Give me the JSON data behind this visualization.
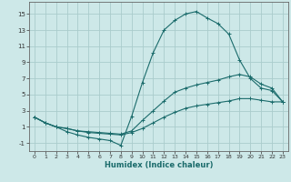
{
  "xlabel": "Humidex (Indice chaleur)",
  "bg_color": "#cde8e8",
  "grid_color": "#aacccc",
  "line_color": "#1a6b6b",
  "xlim": [
    -0.5,
    23.5
  ],
  "ylim": [
    -2.0,
    16.5
  ],
  "xticks": [
    0,
    1,
    2,
    3,
    4,
    5,
    6,
    7,
    8,
    9,
    10,
    11,
    12,
    13,
    14,
    15,
    16,
    17,
    18,
    19,
    20,
    21,
    22,
    23
  ],
  "yticks": [
    -1,
    1,
    3,
    5,
    7,
    9,
    11,
    13,
    15
  ],
  "curve1_x": [
    0,
    1,
    2,
    3,
    4,
    5,
    6,
    7,
    8,
    9,
    10,
    11,
    12,
    13,
    14,
    15,
    16,
    17,
    18,
    19,
    20,
    21,
    22,
    23
  ],
  "curve1_y": [
    2.2,
    1.5,
    1.0,
    0.4,
    0.0,
    -0.3,
    -0.5,
    -0.7,
    -1.3,
    2.3,
    6.5,
    10.2,
    13.0,
    14.2,
    15.0,
    15.3,
    14.5,
    13.8,
    12.5,
    9.3,
    7.0,
    5.8,
    5.5,
    4.1
  ],
  "curve2_x": [
    0,
    1,
    2,
    3,
    4,
    5,
    6,
    7,
    8,
    9,
    10,
    11,
    12,
    13,
    14,
    15,
    16,
    17,
    18,
    19,
    20,
    21,
    22,
    23
  ],
  "curve2_y": [
    2.2,
    1.5,
    1.0,
    0.8,
    0.5,
    0.4,
    0.3,
    0.2,
    0.1,
    0.5,
    1.8,
    3.0,
    4.2,
    5.3,
    5.8,
    6.2,
    6.5,
    6.8,
    7.2,
    7.5,
    7.2,
    6.3,
    5.8,
    4.1
  ],
  "curve3_x": [
    0,
    1,
    2,
    3,
    4,
    5,
    6,
    7,
    8,
    9,
    10,
    11,
    12,
    13,
    14,
    15,
    16,
    17,
    18,
    19,
    20,
    21,
    22,
    23
  ],
  "curve3_y": [
    2.2,
    1.5,
    1.0,
    0.8,
    0.5,
    0.3,
    0.2,
    0.1,
    0.0,
    0.3,
    0.8,
    1.5,
    2.2,
    2.8,
    3.3,
    3.6,
    3.8,
    4.0,
    4.2,
    4.5,
    4.5,
    4.3,
    4.1,
    4.1
  ]
}
